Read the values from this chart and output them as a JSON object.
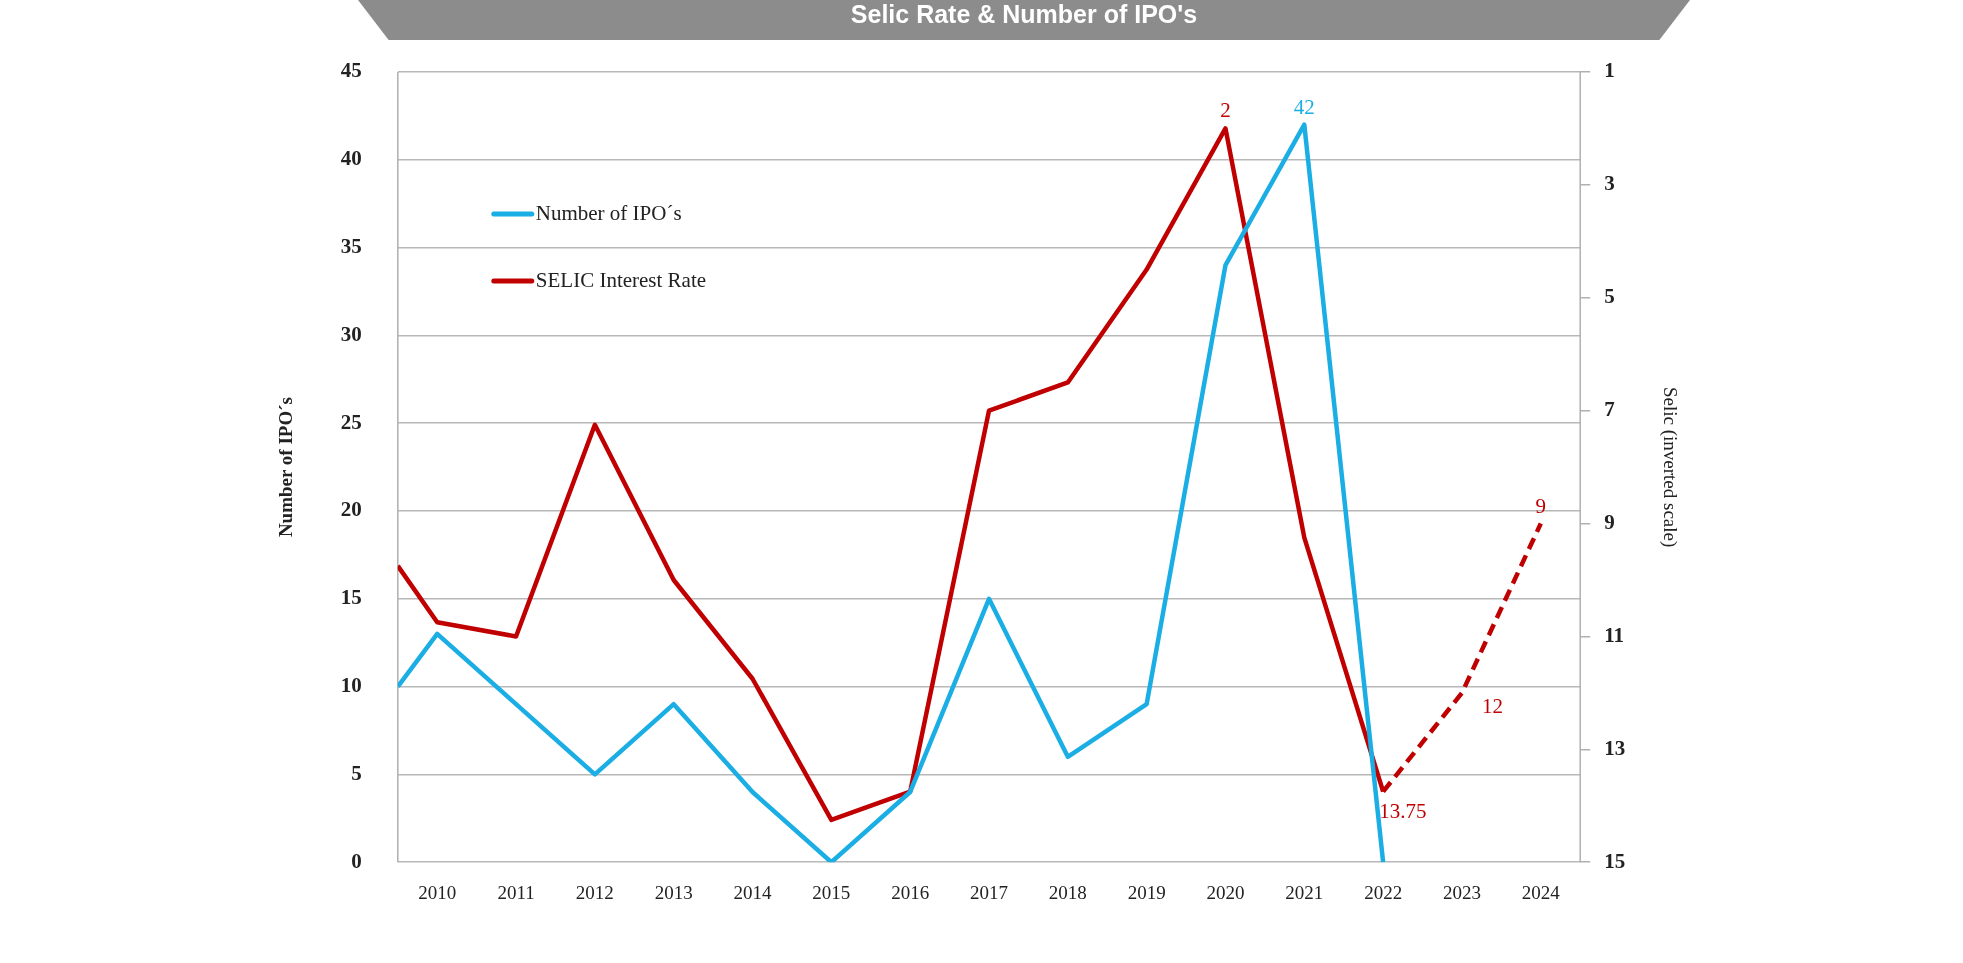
{
  "chart_data": {
    "type": "line",
    "title": "Selic Rate & Number of IPO's",
    "ylabel": "Number of IPO´s",
    "y2label": "Selic (inverted scale)",
    "xlim": [
      2009.5,
      2024.5
    ],
    "xticks": [
      2010,
      2011,
      2012,
      2013,
      2014,
      2015,
      2016,
      2017,
      2018,
      2019,
      2020,
      2021,
      2022,
      2023,
      2024
    ],
    "ylim": [
      0,
      45
    ],
    "yticks": [
      0,
      5,
      10,
      15,
      20,
      25,
      30,
      35,
      40,
      45
    ],
    "y2lim": [
      15,
      1
    ],
    "y2ticks": [
      1,
      3,
      5,
      7,
      9,
      11,
      13,
      15
    ],
    "grid": "y",
    "legend": "top left",
    "marker": "none",
    "series": [
      {
        "name": "Number of IPO´s",
        "color": "#1aaee5",
        "x": [
          2009.5,
          2010,
          2011,
          2012,
          2013,
          2014,
          2015,
          2016,
          2017,
          2018,
          2019,
          2020,
          2021,
          2022
        ],
        "values": [
          10,
          13,
          9,
          5,
          9,
          4,
          0,
          4,
          15,
          6,
          9,
          34,
          42,
          0
        ],
        "value_labels": [
          null,
          null,
          null,
          null,
          null,
          null,
          null,
          null,
          null,
          null,
          null,
          null,
          "42",
          null
        ],
        "line_style": "solid"
      },
      {
        "name": "SELIC Interest Rate",
        "color": "#c00000",
        "axis": "y2",
        "x": [
          2009.5,
          2010,
          2011,
          2012,
          2013,
          2014,
          2015,
          2016,
          2017,
          2018,
          2019,
          2020,
          2021,
          2022
        ],
        "values": [
          9.75,
          10.75,
          11,
          7.25,
          10,
          11.75,
          14.25,
          13.75,
          7,
          6.5,
          4.5,
          2,
          9.25,
          13.75
        ],
        "value_labels": [
          null,
          null,
          null,
          null,
          null,
          null,
          null,
          null,
          null,
          null,
          null,
          "2",
          null,
          null
        ],
        "line_style": "solid"
      },
      {
        "color": "#c00000",
        "axis": "y2",
        "x": [
          2022,
          2023,
          2024
        ],
        "values": [
          13.75,
          12,
          9
        ],
        "value_labels": [
          "13.75",
          "12",
          "9"
        ],
        "line_style": "dashed"
      }
    ]
  }
}
